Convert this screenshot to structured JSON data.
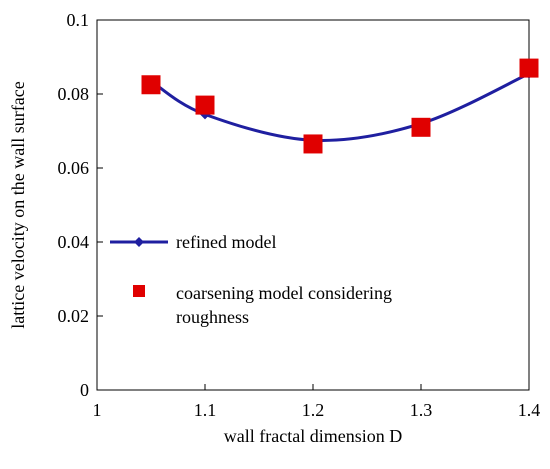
{
  "chart_data": {
    "type": "line",
    "xlabel": "wall  fractal dimension D",
    "ylabel": "lattice velocity on the wall  surface",
    "xlim": [
      1,
      1.4
    ],
    "ylim": [
      0,
      0.1
    ],
    "x_ticks": [
      1,
      1.1,
      1.2,
      1.3,
      1.4
    ],
    "x_tick_labels": [
      "1",
      "1.1",
      "1.2",
      "1.3",
      "1.4"
    ],
    "y_ticks": [
      0,
      0.02,
      0.04,
      0.06,
      0.08,
      0.1
    ],
    "y_tick_labels": [
      "0",
      "0.02",
      "0.04",
      "0.06",
      "0.08",
      "0.1"
    ],
    "grid": false,
    "legend_position": "lower-left",
    "series": [
      {
        "name": "refined model",
        "style": "smooth line with diamond markers",
        "color": "#1f1fa0",
        "x": [
          1.05,
          1.1,
          1.2,
          1.3,
          1.4
        ],
        "y": [
          0.0835,
          0.0745,
          0.0675,
          0.072,
          0.0855
        ]
      },
      {
        "name": "coarsening model considering roughness",
        "style": "square markers",
        "color": "#e00000",
        "x": [
          1.05,
          1.1,
          1.2,
          1.3,
          1.4
        ],
        "y": [
          0.0825,
          0.077,
          0.0665,
          0.071,
          0.087
        ]
      }
    ],
    "legend": [
      {
        "label": "refined model"
      },
      {
        "label_lines": [
          "coarsening model considering",
          "roughness"
        ]
      }
    ]
  }
}
